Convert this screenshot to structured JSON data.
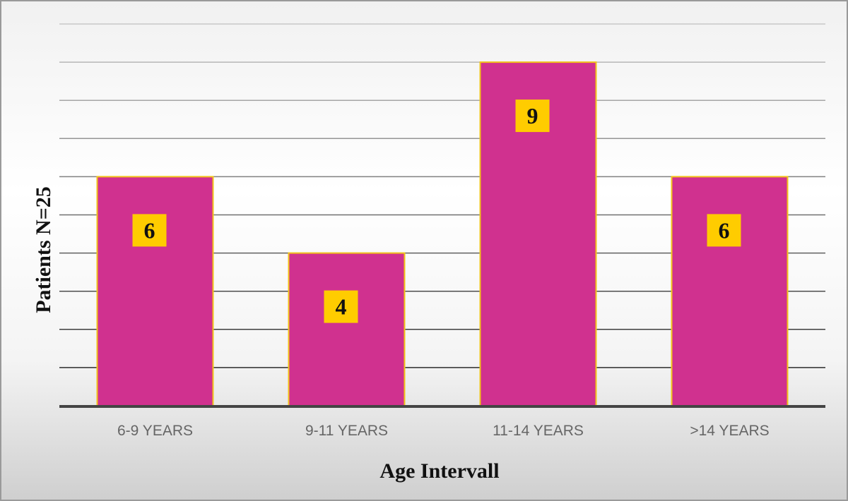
{
  "chart_data": {
    "type": "bar",
    "title": "",
    "xlabel": "Age Intervall",
    "ylabel": "Patients N=25",
    "categories": [
      "6-9  YEARS",
      "9-11 YEARS",
      "11-14 YEARS",
      ">14 YEARS"
    ],
    "values": [
      6,
      4,
      9,
      6
    ],
    "data_labels": [
      "6",
      "4",
      "9",
      "6"
    ],
    "ylim": [
      0,
      10
    ],
    "ytick_step": 1,
    "y_tick_labels_shown": false,
    "grid": true,
    "legend": "none",
    "colors": {
      "bar_fill": "#d0318f",
      "bar_edge": "#f2c31a",
      "label_box": "#ffcc00",
      "label_text": "#111111",
      "gridline_top": "#c8c8c8",
      "gridline_bottom": "#1a1a1a",
      "axis": "#444444",
      "tick_text": "#666666"
    }
  }
}
